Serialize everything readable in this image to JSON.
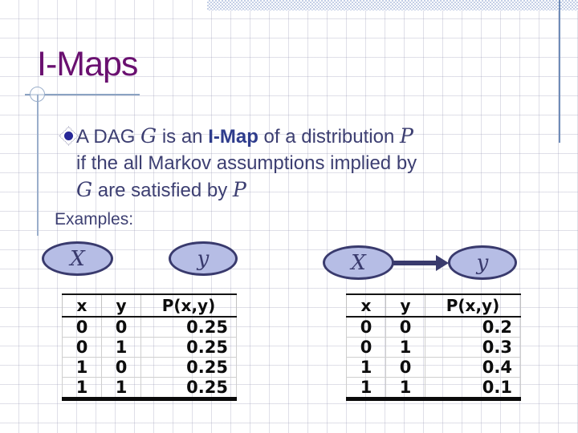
{
  "slide": {
    "title": "I-Maps",
    "bullet": {
      "line1": {
        "t1": "A DAG ",
        "g": "G",
        "t2": " is an ",
        "imap": "I-Map",
        "t3": " of a distribution ",
        "p": "P"
      },
      "line2": "if the all Markov assumptions implied by",
      "line3": {
        "g": "G",
        "t1": " are satisfied by ",
        "p": "P"
      }
    },
    "examples_label": "Examples:",
    "graphs": {
      "left": {
        "x_label": "X",
        "y_label": "y"
      },
      "right": {
        "x_label": "X",
        "y_label": "y"
      }
    },
    "icons": {
      "edge_arrow": "arrow-right"
    },
    "tables": [
      {
        "headers": [
          "x",
          "y",
          "P(x,y)"
        ],
        "rows": [
          [
            "0",
            "0",
            "0.25"
          ],
          [
            "0",
            "1",
            "0.25"
          ],
          [
            "1",
            "0",
            "0.25"
          ],
          [
            "1",
            "1",
            "0.25"
          ]
        ]
      },
      {
        "headers": [
          "x",
          "y",
          "P(x,y)"
        ],
        "rows": [
          [
            "0",
            "0",
            "0.2"
          ],
          [
            "0",
            "1",
            "0.3"
          ],
          [
            "1",
            "0",
            "0.4"
          ],
          [
            "1",
            "1",
            "0.1"
          ]
        ]
      }
    ],
    "colors": {
      "title": "#6a1070",
      "body_text": "#3d3f72",
      "bold_term": "#2e3c8c",
      "node_fill": "#b6bde5",
      "node_border": "#393a6d",
      "accent_line": "#8ba3c2",
      "top_bar": "#c4cfe6",
      "table_text": "#0d0d0d"
    }
  }
}
